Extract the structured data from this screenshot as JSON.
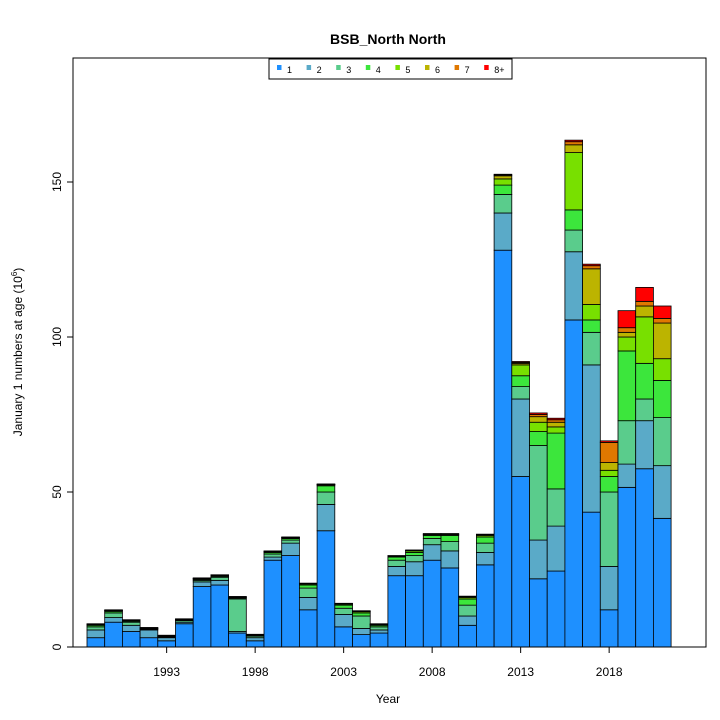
{
  "chart_data": {
    "type": "bar",
    "stacked": true,
    "title": "BSB_North North",
    "xlabel": "Year",
    "ylabel": "January 1 numbers at age (10",
    "ylabel_sup": "6",
    "ylabel_close": ")",
    "ylim": [
      0,
      190
    ],
    "yticks": [
      0,
      50,
      100,
      150
    ],
    "xticks": [
      1993,
      1998,
      2003,
      2008,
      2013,
      2018
    ],
    "legend_position": "top-center",
    "colors": {
      "1": "#1e90ff",
      "2": "#5aaac8",
      "3": "#5acc8c",
      "4": "#3ce63c",
      "5": "#78e000",
      "6": "#bcb400",
      "7": "#e07800",
      "8+": "#ff0000"
    },
    "categories": [
      1989,
      1990,
      1991,
      1992,
      1993,
      1994,
      1995,
      1996,
      1997,
      1998,
      1999,
      2000,
      2001,
      2002,
      2003,
      2004,
      2005,
      2006,
      2007,
      2008,
      2009,
      2010,
      2011,
      2012,
      2013,
      2014,
      2015,
      2016,
      2017,
      2018,
      2019,
      2020,
      2021
    ],
    "series": [
      {
        "name": "1",
        "values": [
          3,
          8,
          5,
          3,
          2,
          7.5,
          19.5,
          20,
          4.5,
          2,
          28,
          29.5,
          12,
          37.5,
          6.5,
          4,
          4.5,
          23,
          23,
          28,
          25.5,
          7,
          26.5,
          128,
          55,
          22,
          24.5,
          105.5,
          43.5,
          12,
          51.5,
          57.5,
          41.5
        ]
      },
      {
        "name": "2",
        "values": [
          2.5,
          1.5,
          2,
          2.5,
          1,
          0.5,
          1.5,
          1.5,
          0.5,
          1,
          1,
          4,
          4,
          8.5,
          4,
          2,
          1,
          3,
          4.5,
          5,
          5.5,
          3,
          4,
          12,
          25,
          12.5,
          14.5,
          22,
          47.5,
          14,
          7.5,
          15.5,
          17
        ]
      },
      {
        "name": "3",
        "values": [
          1,
          1.5,
          1,
          0.2,
          0.2,
          0.5,
          0.5,
          1,
          10.5,
          0.5,
          1,
          1,
          3,
          4,
          2,
          4,
          1,
          2,
          2,
          2,
          3,
          3.5,
          3,
          6,
          4,
          30.5,
          12,
          7,
          10.5,
          24,
          14,
          7,
          15.5
        ]
      },
      {
        "name": "4",
        "values": [
          0.5,
          0.5,
          0.3,
          0.2,
          0.2,
          0.2,
          0.3,
          0.3,
          0.3,
          0.2,
          0.5,
          0.5,
          1,
          2,
          1,
          1,
          0.5,
          1,
          1,
          1,
          2,
          2,
          2,
          3,
          3.5,
          4.5,
          18,
          6.5,
          4,
          5,
          22.5,
          11.5,
          12
        ]
      },
      {
        "name": "5",
        "values": [
          0.2,
          0.2,
          0.2,
          0.1,
          0.1,
          0.1,
          0.2,
          0.2,
          0.2,
          0.1,
          0.2,
          0.2,
          0.3,
          0.3,
          0.3,
          0.4,
          0.2,
          0.2,
          0.5,
          0.3,
          0.3,
          0.5,
          0.5,
          2,
          3.5,
          3,
          2,
          18.5,
          5,
          2,
          4.5,
          15,
          7
        ]
      },
      {
        "name": "6",
        "values": [
          0.1,
          0.1,
          0.1,
          0.1,
          0.1,
          0.1,
          0.1,
          0.1,
          0.1,
          0.1,
          0.1,
          0.1,
          0.1,
          0.1,
          0.1,
          0.1,
          0.1,
          0.1,
          0.1,
          0.1,
          0.1,
          0.2,
          0.2,
          1,
          0.5,
          1.8,
          1.5,
          2.5,
          11.5,
          2.5,
          1.5,
          3.5,
          11.5
        ]
      },
      {
        "name": "7",
        "values": [
          0.1,
          0.1,
          0.1,
          0.1,
          0.1,
          0.1,
          0.1,
          0.1,
          0.1,
          0.1,
          0.1,
          0.1,
          0.1,
          0.1,
          0.1,
          0.1,
          0.1,
          0.1,
          0.1,
          0.1,
          0.1,
          0.1,
          0.1,
          0.3,
          0.3,
          0.7,
          0.8,
          1,
          1,
          6.5,
          1.5,
          1.5,
          1.5
        ]
      },
      {
        "name": "8+",
        "values": [
          0.1,
          0.1,
          0.1,
          0.1,
          0.1,
          0.1,
          0.1,
          0.1,
          0.1,
          0.1,
          0.1,
          0.1,
          0.1,
          0.1,
          0.1,
          0.1,
          0.1,
          0.1,
          0.1,
          0.1,
          0.1,
          0.1,
          0.1,
          0.2,
          0.3,
          0.5,
          0.5,
          0.5,
          0.5,
          0.5,
          5.5,
          4.5,
          4
        ]
      }
    ]
  }
}
